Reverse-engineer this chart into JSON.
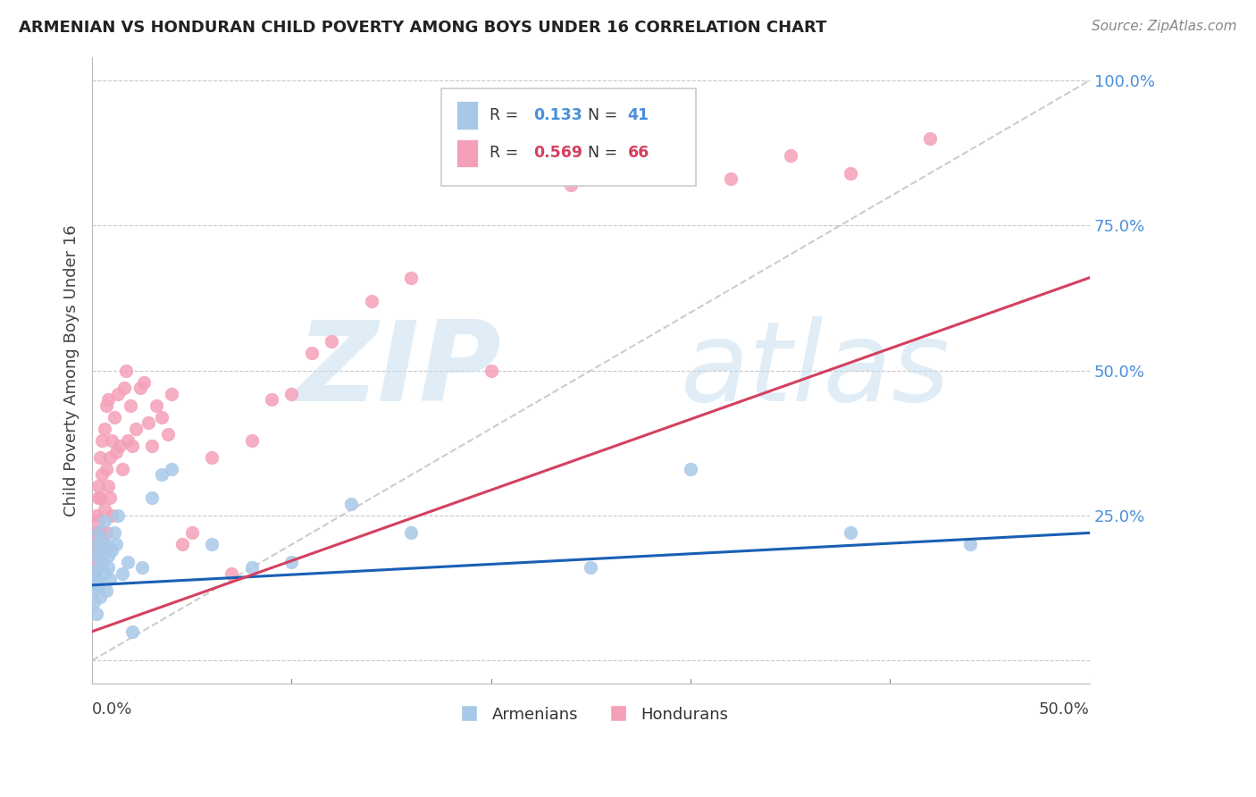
{
  "title": "ARMENIAN VS HONDURAN CHILD POVERTY AMONG BOYS UNDER 16 CORRELATION CHART",
  "source": "Source: ZipAtlas.com",
  "ylabel": "Child Poverty Among Boys Under 16",
  "armenian_R": "0.133",
  "armenian_N": "41",
  "honduran_R": "0.569",
  "honduran_N": "66",
  "armenian_color": "#a8c8e8",
  "honduran_color": "#f4a0b8",
  "armenian_line_color": "#1a5fb4",
  "honduran_line_color": "#d44060",
  "ref_line_color": "#cccccc",
  "watermark_color": "#c8dff0",
  "background_color": "#ffffff",
  "grid_color": "#c8c8c8",
  "title_color": "#222222",
  "source_color": "#888888",
  "axis_label_color": "#4a90d9",
  "legend_R_color_armenian": "#4a90d9",
  "legend_R_color_honduran": "#d44060",
  "xmin": 0.0,
  "xmax": 0.5,
  "ymin": 0.0,
  "ymax": 1.0,
  "arm_intercept": 0.13,
  "arm_slope": 0.18,
  "hon_intercept": 0.05,
  "hon_slope": 1.22,
  "armenian_x": [
    0.001,
    0.001,
    0.001,
    0.002,
    0.002,
    0.002,
    0.002,
    0.003,
    0.003,
    0.003,
    0.004,
    0.004,
    0.005,
    0.005,
    0.006,
    0.006,
    0.007,
    0.007,
    0.008,
    0.008,
    0.009,
    0.01,
    0.011,
    0.012,
    0.013,
    0.015,
    0.018,
    0.02,
    0.025,
    0.03,
    0.035,
    0.04,
    0.06,
    0.08,
    0.1,
    0.13,
    0.16,
    0.25,
    0.3,
    0.38,
    0.44
  ],
  "armenian_y": [
    0.15,
    0.12,
    0.1,
    0.18,
    0.2,
    0.14,
    0.08,
    0.22,
    0.16,
    0.13,
    0.19,
    0.11,
    0.17,
    0.21,
    0.15,
    0.24,
    0.12,
    0.2,
    0.16,
    0.18,
    0.14,
    0.19,
    0.22,
    0.2,
    0.25,
    0.15,
    0.17,
    0.05,
    0.16,
    0.28,
    0.32,
    0.33,
    0.2,
    0.16,
    0.17,
    0.27,
    0.22,
    0.16,
    0.33,
    0.22,
    0.2
  ],
  "honduran_x": [
    0.001,
    0.001,
    0.001,
    0.001,
    0.002,
    0.002,
    0.002,
    0.002,
    0.003,
    0.003,
    0.003,
    0.004,
    0.004,
    0.004,
    0.005,
    0.005,
    0.005,
    0.006,
    0.006,
    0.007,
    0.007,
    0.007,
    0.008,
    0.008,
    0.009,
    0.009,
    0.01,
    0.01,
    0.011,
    0.012,
    0.013,
    0.014,
    0.015,
    0.016,
    0.017,
    0.018,
    0.019,
    0.02,
    0.022,
    0.024,
    0.026,
    0.028,
    0.03,
    0.032,
    0.035,
    0.038,
    0.04,
    0.045,
    0.05,
    0.06,
    0.07,
    0.08,
    0.09,
    0.1,
    0.11,
    0.12,
    0.14,
    0.16,
    0.2,
    0.24,
    0.2,
    0.28,
    0.32,
    0.35,
    0.38,
    0.42
  ],
  "honduran_y": [
    0.2,
    0.22,
    0.18,
    0.15,
    0.25,
    0.19,
    0.22,
    0.17,
    0.28,
    0.3,
    0.24,
    0.35,
    0.28,
    0.22,
    0.38,
    0.32,
    0.2,
    0.4,
    0.26,
    0.44,
    0.33,
    0.22,
    0.45,
    0.3,
    0.35,
    0.28,
    0.38,
    0.25,
    0.42,
    0.36,
    0.46,
    0.37,
    0.33,
    0.47,
    0.5,
    0.38,
    0.44,
    0.37,
    0.4,
    0.47,
    0.48,
    0.41,
    0.37,
    0.44,
    0.42,
    0.39,
    0.46,
    0.2,
    0.22,
    0.35,
    0.15,
    0.38,
    0.45,
    0.46,
    0.53,
    0.55,
    0.62,
    0.66,
    0.85,
    0.82,
    0.5,
    0.88,
    0.83,
    0.87,
    0.84,
    0.9
  ]
}
